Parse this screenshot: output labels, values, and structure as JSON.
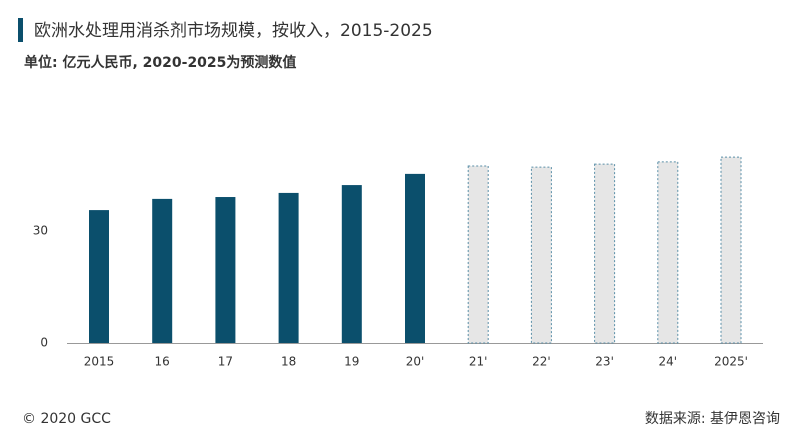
{
  "chart_data": {
    "type": "bar",
    "title": "欧洲水处理用消杀剂市场规模，按收入，2015-2025",
    "subtitle": "单位: 亿元人民币, 2020-2025为预测数值",
    "categories": [
      "2015",
      "16",
      "17",
      "18",
      "19",
      "20'",
      "21'",
      "22'",
      "23'",
      "24'",
      "2025'"
    ],
    "values": [
      35.6,
      38.6,
      39.1,
      40.2,
      42.3,
      45.3,
      47.4,
      47.1,
      47.9,
      48.5,
      49.8
    ],
    "colors": [
      "#0b4f6c",
      "#0b4f6c",
      "#0b4f6c",
      "#0b4f6c",
      "#0b4f6c",
      "#0b4f6c",
      "#e6e6e6",
      "#e6e6e6",
      "#e6e6e6",
      "#e6e6e6",
      "#e6e6e6"
    ],
    "border_styles": [
      "solid",
      "solid",
      "solid",
      "solid",
      "solid",
      "solid",
      "dashed",
      "dashed",
      "dashed",
      "dashed",
      "dashed"
    ],
    "ylim": [
      0,
      60
    ],
    "yticks": [
      0,
      30
    ],
    "grid": false,
    "copyright": "© 2020 GCC",
    "source": "数据来源: 基伊恩咨询"
  }
}
